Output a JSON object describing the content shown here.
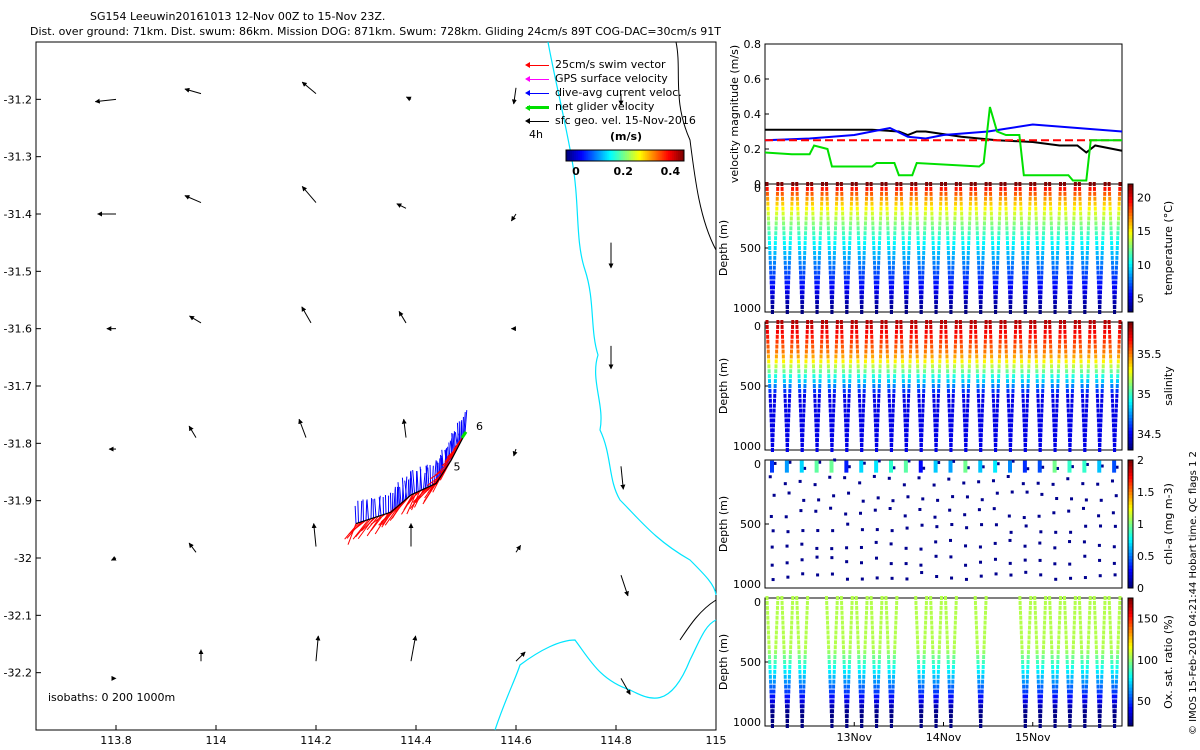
{
  "header": {
    "line1": "SG154 Leeuwin20161013 12-Nov 00Z to 15-Nov 23Z.",
    "line2": "Dist. over ground: 71km. Dist. swum: 86km. Mission DOG: 871km. Swum: 728km. Gliding 24cm/s 89T COG-DAC=30cm/s 91T"
  },
  "legend": {
    "items": [
      {
        "label": "25cm/s swim vector",
        "color": "#ff0000"
      },
      {
        "label": "GPS surface velocity",
        "color": "#ff00ff"
      },
      {
        "label": "dive-avg current veloc.",
        "color": "#0000ff"
      },
      {
        "label": "net glider velocity",
        "color": "#00e000"
      },
      {
        "label": "sfc geo. vel. 15-Nov-2016",
        "color": "#000000"
      }
    ],
    "interval": "4h",
    "unit": "(m/s)"
  },
  "isobaths_label": "isobaths: 0   200  1000m",
  "vertical_note": "© IMOS 15-Feb-2019 04:21:44 Hobart time. QC flags 1  2",
  "colors": {
    "coast": "#00e5ff",
    "black": "#000000"
  },
  "chart_data": [
    {
      "id": "map",
      "type": "scatter",
      "title": "SG154 Leeuwin20161013 12-Nov 00Z to 15-Nov 23Z.",
      "xlim": [
        113.64,
        115.0
      ],
      "ylim": [
        -32.3,
        -31.1
      ],
      "x_ticks": [
        "113.8",
        "114",
        "114.2",
        "114.4",
        "114.6",
        "114.8",
        "115"
      ],
      "x_tick_values": [
        113.8,
        114.0,
        114.2,
        114.4,
        114.6,
        114.8,
        115.0
      ],
      "y_ticks": [
        "-31.2",
        "-31.3",
        "-31.4",
        "-31.5",
        "-31.6",
        "-31.7",
        "-31.8",
        "-31.9",
        "-32",
        "-32.1",
        "-32.2"
      ],
      "y_tick_values": [
        -31.2,
        -31.3,
        -31.4,
        -31.5,
        -31.6,
        -31.7,
        -31.8,
        -31.9,
        -32.0,
        -32.1,
        -32.2
      ],
      "colorbar": {
        "ticks": [
          "0",
          "0.2",
          "0.4"
        ],
        "tick_values": [
          0,
          0.2,
          0.4
        ],
        "range": [
          0,
          0.5
        ]
      },
      "track_labels": [
        "6",
        "5"
      ],
      "geo_arrows": [
        {
          "lon": 113.8,
          "lat": -31.2,
          "u": -0.09,
          "v": -0.01
        },
        {
          "lon": 113.97,
          "lat": -31.19,
          "u": -0.07,
          "v": 0.02
        },
        {
          "lon": 114.2,
          "lat": -31.19,
          "u": -0.06,
          "v": 0.05
        },
        {
          "lon": 114.39,
          "lat": -31.2,
          "u": -0.02,
          "v": 0.01
        },
        {
          "lon": 114.6,
          "lat": -31.18,
          "u": -0.01,
          "v": -0.07
        },
        {
          "lon": 114.81,
          "lat": -31.19,
          "u": 0.0,
          "v": -0.05
        },
        {
          "lon": 113.8,
          "lat": -31.4,
          "u": -0.08,
          "v": 0.0
        },
        {
          "lon": 113.97,
          "lat": -31.38,
          "u": -0.07,
          "v": 0.03
        },
        {
          "lon": 114.2,
          "lat": -31.38,
          "u": -0.06,
          "v": 0.07
        },
        {
          "lon": 114.38,
          "lat": -31.39,
          "u": -0.04,
          "v": 0.02
        },
        {
          "lon": 114.6,
          "lat": -31.4,
          "u": -0.02,
          "v": -0.03
        },
        {
          "lon": 114.79,
          "lat": -31.45,
          "u": 0.0,
          "v": -0.11
        },
        {
          "lon": 113.8,
          "lat": -31.6,
          "u": -0.04,
          "v": 0.0
        },
        {
          "lon": 113.97,
          "lat": -31.59,
          "u": -0.05,
          "v": 0.03
        },
        {
          "lon": 114.19,
          "lat": -31.59,
          "u": -0.04,
          "v": 0.07
        },
        {
          "lon": 114.38,
          "lat": -31.59,
          "u": -0.03,
          "v": 0.05
        },
        {
          "lon": 114.6,
          "lat": -31.6,
          "u": -0.02,
          "v": 0.0
        },
        {
          "lon": 114.79,
          "lat": -31.63,
          "u": 0.0,
          "v": -0.1
        },
        {
          "lon": 113.8,
          "lat": -31.81,
          "u": -0.03,
          "v": 0.0
        },
        {
          "lon": 113.96,
          "lat": -31.79,
          "u": -0.03,
          "v": 0.05
        },
        {
          "lon": 114.18,
          "lat": -31.79,
          "u": -0.03,
          "v": 0.08
        },
        {
          "lon": 114.38,
          "lat": -31.79,
          "u": -0.01,
          "v": 0.08
        },
        {
          "lon": 114.6,
          "lat": -31.81,
          "u": -0.01,
          "v": -0.03
        },
        {
          "lon": 114.81,
          "lat": -31.84,
          "u": 0.01,
          "v": -0.1
        },
        {
          "lon": 113.8,
          "lat": -32.0,
          "u": -0.02,
          "v": -0.01
        },
        {
          "lon": 113.96,
          "lat": -31.99,
          "u": -0.03,
          "v": 0.04
        },
        {
          "lon": 114.2,
          "lat": -31.98,
          "u": -0.01,
          "v": 0.1
        },
        {
          "lon": 114.39,
          "lat": -31.98,
          "u": 0.0,
          "v": 0.1
        },
        {
          "lon": 114.6,
          "lat": -31.99,
          "u": 0.02,
          "v": 0.03
        },
        {
          "lon": 114.81,
          "lat": -32.03,
          "u": 0.03,
          "v": -0.09
        },
        {
          "lon": 113.8,
          "lat": -32.21,
          "u": 0.0,
          "v": 0.0
        },
        {
          "lon": 113.97,
          "lat": -32.18,
          "u": 0.0,
          "v": 0.05
        },
        {
          "lon": 114.2,
          "lat": -32.18,
          "u": 0.01,
          "v": 0.11
        },
        {
          "lon": 114.39,
          "lat": -32.18,
          "u": 0.02,
          "v": 0.11
        },
        {
          "lon": 114.6,
          "lat": -32.18,
          "u": 0.04,
          "v": 0.04
        },
        {
          "lon": 114.81,
          "lat": -32.21,
          "u": 0.04,
          "v": -0.07
        }
      ],
      "track": [
        {
          "lon": 114.28,
          "lat": -31.94
        },
        {
          "lon": 114.35,
          "lat": -31.92
        },
        {
          "lon": 114.39,
          "lat": -31.89
        },
        {
          "lon": 114.44,
          "lat": -31.87
        },
        {
          "lon": 114.47,
          "lat": -31.83
        },
        {
          "lon": 114.5,
          "lat": -31.78
        }
      ]
    },
    {
      "id": "velocity",
      "type": "line",
      "ylabel": "velocity magnitude (m/s)",
      "xlim": [
        0,
        4
      ],
      "ylim": [
        0,
        0.8
      ],
      "y_ticks": [
        "0",
        "0.2",
        "0.4",
        "0.6",
        "0.8"
      ],
      "y_tick_values": [
        0,
        0.2,
        0.4,
        0.6,
        0.8
      ],
      "series": [
        {
          "name": "sfc geo. vel.",
          "color": "#000000",
          "x": [
            0,
            0.4,
            0.8,
            1.2,
            1.5,
            1.6,
            1.7,
            1.8,
            2.2,
            2.6,
            3.0,
            3.3,
            3.5,
            3.6,
            3.7,
            4.0
          ],
          "y": [
            0.31,
            0.31,
            0.31,
            0.31,
            0.3,
            0.28,
            0.3,
            0.3,
            0.27,
            0.25,
            0.24,
            0.22,
            0.22,
            0.18,
            0.22,
            0.19
          ]
        },
        {
          "name": "dive-avg current",
          "color": "#0000ff",
          "x": [
            0,
            0.5,
            1.0,
            1.4,
            1.6,
            1.8,
            2.0,
            2.5,
            3.0,
            3.5,
            4.0
          ],
          "y": [
            0.25,
            0.26,
            0.28,
            0.32,
            0.27,
            0.26,
            0.28,
            0.3,
            0.34,
            0.32,
            0.3
          ]
        },
        {
          "name": "swim vector",
          "color": "#ff0000",
          "dashed": true,
          "x": [
            0,
            4
          ],
          "y": [
            0.25,
            0.25
          ]
        },
        {
          "name": "net glider velocity",
          "color": "#00e000",
          "x": [
            0,
            0.3,
            0.5,
            0.55,
            0.7,
            0.75,
            1.2,
            1.25,
            1.45,
            1.5,
            1.65,
            1.7,
            2.4,
            2.45,
            2.52,
            2.6,
            2.7,
            2.85,
            2.9,
            3.4,
            3.45,
            3.6,
            3.65,
            4.0
          ],
          "y": [
            0.18,
            0.17,
            0.17,
            0.22,
            0.2,
            0.1,
            0.1,
            0.12,
            0.12,
            0.05,
            0.05,
            0.12,
            0.1,
            0.12,
            0.44,
            0.3,
            0.28,
            0.28,
            0.05,
            0.05,
            0.02,
            0.02,
            0.25,
            0.25
          ]
        }
      ]
    },
    {
      "id": "temperature",
      "type": "heatmap",
      "ylabel": "Depth (m)",
      "clabel": "temperature (°C)",
      "ylim": [
        1000,
        0
      ],
      "y_ticks": [
        "0",
        "500",
        "1000"
      ],
      "y_tick_values": [
        0,
        500,
        1000
      ],
      "colorbar": {
        "ticks": [
          "20",
          "15",
          "10",
          "5"
        ],
        "tick_values": [
          20,
          15,
          10,
          5
        ],
        "range": [
          3,
          22
        ]
      },
      "n_dives": 24,
      "max_depth": 1000
    },
    {
      "id": "salinity",
      "type": "heatmap",
      "ylabel": "Depth (m)",
      "clabel": "salinity",
      "ylim": [
        1000,
        0
      ],
      "y_ticks": [
        "0",
        "500",
        "1000"
      ],
      "y_tick_values": [
        0,
        500,
        1000
      ],
      "colorbar": {
        "ticks": [
          "35.5",
          "35",
          "34.5"
        ],
        "tick_values": [
          35.5,
          35,
          34.5
        ],
        "range": [
          34.3,
          35.9
        ]
      },
      "n_dives": 24,
      "max_depth": 1000
    },
    {
      "id": "chla",
      "type": "scatter",
      "ylabel": "Depth (m)",
      "clabel": "chl-a (mg m-3)",
      "ylim": [
        1000,
        0
      ],
      "y_ticks": [
        "0",
        "500",
        "1000"
      ],
      "y_tick_values": [
        0,
        500,
        1000
      ],
      "colorbar": {
        "ticks": [
          "2",
          "1.5",
          "1",
          "0.5",
          "0"
        ],
        "tick_values": [
          2,
          1.5,
          1,
          0.5,
          0
        ],
        "range": [
          0,
          2
        ]
      },
      "n_dives": 24,
      "max_depth": 1000
    },
    {
      "id": "oxygen",
      "type": "heatmap",
      "ylabel": "Depth (m)",
      "clabel": "Ox. sat. ratio (%)",
      "ylim": [
        1000,
        0
      ],
      "y_ticks": [
        "0",
        "500",
        "1000"
      ],
      "y_tick_values": [
        0,
        500,
        1000
      ],
      "x_ticks": [
        "13Nov",
        "14Nov",
        "15Nov"
      ],
      "x_tick_values": [
        1,
        2,
        3
      ],
      "colorbar": {
        "ticks": [
          "150",
          "100",
          "50"
        ],
        "tick_values": [
          150,
          100,
          50
        ],
        "range": [
          20,
          175
        ]
      },
      "dives_present": [
        0,
        1,
        2,
        4,
        5,
        6,
        7,
        8,
        10,
        11,
        12,
        14,
        17,
        18,
        19,
        20,
        21,
        22,
        23
      ],
      "n_dives": 24,
      "max_depth": 1000
    }
  ]
}
